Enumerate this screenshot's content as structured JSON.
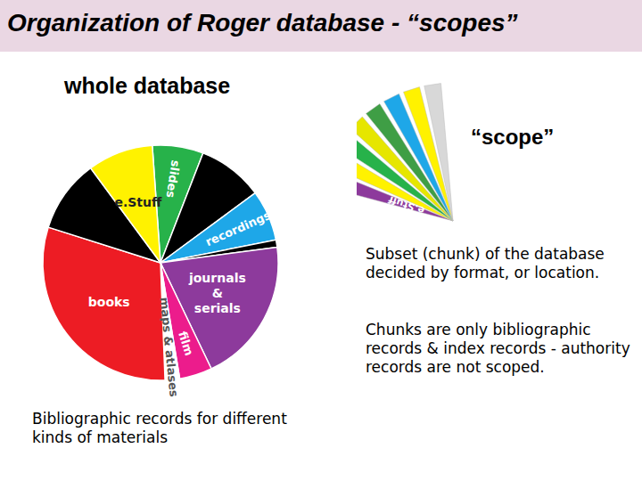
{
  "chart_data": {
    "type": "pie",
    "title": "Organization of Roger database - “scopes”",
    "subtitle": "whole database",
    "caption": "Bibliographic records for different kinds of materials",
    "categories": [
      "slides",
      null,
      "recordings",
      null,
      "journals & serials",
      "film",
      "maps & atlases",
      "books",
      null,
      "e.Stuff"
    ],
    "values": [
      7,
      9,
      7,
      1,
      20,
      4.5,
      2,
      30.5,
      10,
      9
    ],
    "colors": [
      "#27b24a",
      "#000000",
      "#1ea7e8",
      "#000000",
      "#8d3a9c",
      "#ec1c8c",
      "#ffffff",
      "#ed1c24",
      "#000000",
      "#fff200"
    ],
    "annotations": [
      "“scope”",
      "e.Stuff",
      "Subset (chunk) of the database decided by format, or location.",
      "Chunks are only bibliographic records & index records - authority records are not scoped."
    ]
  }
}
